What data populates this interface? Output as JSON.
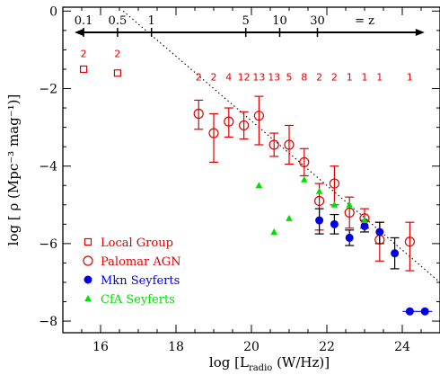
{
  "chart_data": {
    "type": "scatter",
    "xlabel_prefix": "log [",
    "xlabel_L": "L",
    "xlabel_sub": "radio",
    "xlabel_suffix": " (W/Hz)]",
    "ylabel": "log [ ρ (Mpc⁻³ mag⁻¹)]",
    "xlim": [
      15.0,
      25.0
    ],
    "ylim": [
      -8.3,
      0.1
    ],
    "x_ticks": [
      16,
      18,
      20,
      22,
      24
    ],
    "y_ticks": [
      0,
      -2,
      -4,
      -6,
      -8
    ],
    "z_axis": {
      "labels": [
        "0.1",
        "0.5",
        "1",
        "5",
        "10",
        "30"
      ],
      "label_x": [
        15.55,
        16.45,
        17.35,
        19.85,
        20.75,
        21.75
      ],
      "z_symbol": "= z",
      "y_level": -0.55
    },
    "counts": {
      "labels": [
        "2",
        "2",
        "2",
        "2",
        "4",
        "12",
        "13",
        "13",
        "5",
        "8",
        "2",
        "2",
        "1",
        "1",
        "1",
        "1"
      ],
      "x": [
        15.55,
        16.45,
        18.6,
        19.0,
        19.4,
        19.8,
        20.2,
        20.6,
        21.0,
        21.4,
        21.8,
        22.2,
        22.6,
        23.0,
        23.4,
        24.2
      ],
      "y": [
        -1.1,
        -1.1,
        -1.7,
        -1.7,
        -1.7,
        -1.7,
        -1.7,
        -1.7,
        -1.7,
        -1.7,
        -1.7,
        -1.7,
        -1.7,
        -1.7,
        -1.7,
        -1.7
      ]
    },
    "fit_line": {
      "style": "dotted",
      "x": [
        16.6,
        25.0
      ],
      "y": [
        0.0,
        -7.0
      ]
    },
    "series": [
      {
        "name": "Local Group",
        "color": "#e00000",
        "marker": "open-square",
        "points": [
          {
            "x": 15.55,
            "y": -1.5
          },
          {
            "x": 16.45,
            "y": -1.6
          }
        ]
      },
      {
        "name": "Palomar AGN",
        "color": "#e00000",
        "marker": "open-circle",
        "points": [
          {
            "x": 18.6,
            "y": -2.65,
            "lo": -3.05,
            "hi": -2.3
          },
          {
            "x": 19.0,
            "y": -3.15,
            "lo": -3.9,
            "hi": -2.65
          },
          {
            "x": 19.4,
            "y": -2.85,
            "lo": -3.25,
            "hi": -2.5
          },
          {
            "x": 19.8,
            "y": -2.95,
            "lo": -3.3,
            "hi": -2.6
          },
          {
            "x": 20.2,
            "y": -2.7,
            "lo": -3.45,
            "hi": -2.2
          },
          {
            "x": 20.6,
            "y": -3.45,
            "lo": -3.75,
            "hi": -3.15
          },
          {
            "x": 21.0,
            "y": -3.45,
            "lo": -3.95,
            "hi": -2.95
          },
          {
            "x": 21.4,
            "y": -3.9,
            "lo": -4.25,
            "hi": -3.55
          },
          {
            "x": 21.8,
            "y": -4.9,
            "lo": -5.65,
            "hi": -4.45
          },
          {
            "x": 22.2,
            "y": -4.45,
            "lo": -5.0,
            "hi": -4.0
          },
          {
            "x": 22.6,
            "y": -5.2,
            "lo": -5.6,
            "hi": -4.8
          },
          {
            "x": 23.0,
            "y": -5.35,
            "lo": -5.6,
            "hi": -5.1
          },
          {
            "x": 23.4,
            "y": -5.9,
            "lo": -6.45,
            "hi": -5.45
          },
          {
            "x": 24.2,
            "y": -5.95,
            "lo": -6.7,
            "hi": -5.45
          }
        ]
      },
      {
        "name": "Mkn Seyferts",
        "color": "#0000e0",
        "marker": "filled-circle",
        "points": [
          {
            "x": 21.8,
            "y": -5.4,
            "lo": -5.75,
            "hi": -5.1
          },
          {
            "x": 22.2,
            "y": -5.5,
            "lo": -5.75,
            "hi": -5.25
          },
          {
            "x": 22.6,
            "y": -5.85,
            "lo": -6.05,
            "hi": -5.65
          },
          {
            "x": 23.0,
            "y": -5.55,
            "lo": -5.7,
            "hi": -5.4
          },
          {
            "x": 23.4,
            "y": -5.7,
            "lo": -6.0,
            "hi": -5.45
          },
          {
            "x": 23.8,
            "y": -6.25,
            "lo": -6.65,
            "hi": -5.85
          },
          {
            "x": 24.2,
            "y": -7.75
          },
          {
            "x": 24.6,
            "y": -7.75
          }
        ]
      },
      {
        "name": "CfA Seyferts",
        "color": "#00e000",
        "marker": "filled-triangle",
        "points": [
          {
            "x": 20.2,
            "y": -4.5
          },
          {
            "x": 20.6,
            "y": -5.7
          },
          {
            "x": 21.0,
            "y": -5.35
          },
          {
            "x": 21.4,
            "y": -4.35
          },
          {
            "x": 21.8,
            "y": -4.65
          },
          {
            "x": 22.2,
            "y": -5.0
          },
          {
            "x": 22.6,
            "y": -5.0
          },
          {
            "x": 23.0,
            "y": -5.4
          }
        ]
      }
    ]
  }
}
